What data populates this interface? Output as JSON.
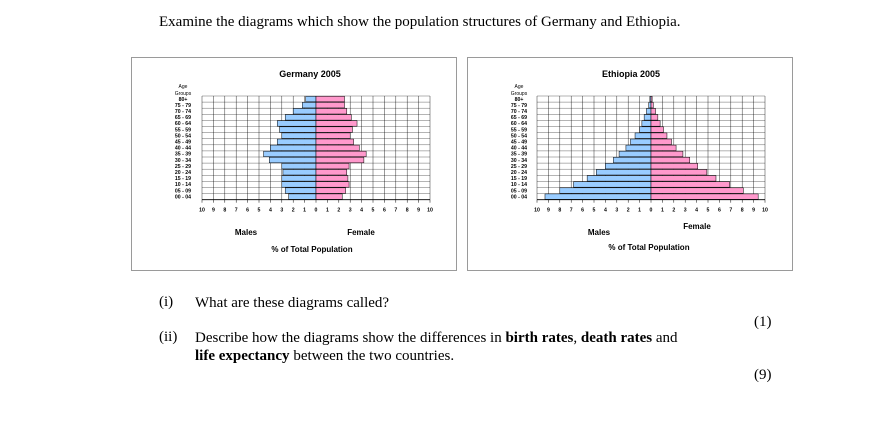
{
  "intro": "Examine the diagrams which show the population structures of Germany and Ethiopia.",
  "age_axis": {
    "title_top": "Age",
    "title_bottom": "Groups"
  },
  "age_groups": [
    "80+",
    "75 - 79",
    "70 - 74",
    "65 - 69",
    "60 - 64",
    "55 - 59",
    "50 - 54",
    "45 - 49",
    "40 - 44",
    "35 - 39",
    "30 - 34",
    "25 - 29",
    "20 - 24",
    "15 - 19",
    "10 - 14",
    "05 - 09",
    "00 - 04"
  ],
  "x_ticks": [
    "10",
    "9",
    "8",
    "7",
    "6",
    "5",
    "4",
    "3",
    "2",
    "1",
    "0",
    "1",
    "2",
    "3",
    "4",
    "5",
    "6",
    "7",
    "8",
    "9",
    "10"
  ],
  "colors": {
    "male": "#99ccff",
    "female": "#ff99cc",
    "edge": "#000000",
    "grid": "#000000"
  },
  "chart_data": [
    {
      "type": "bar",
      "orientation": "horizontal-butterfly",
      "title": "Germany 2005",
      "xlabel": "% of Total Population",
      "left_label": "Males",
      "right_label": "Female",
      "xlim": [
        -10,
        10
      ],
      "categories": [
        "80+",
        "75 - 79",
        "70 - 74",
        "65 - 69",
        "60 - 64",
        "55 - 59",
        "50 - 54",
        "45 - 49",
        "40 - 44",
        "35 - 39",
        "30 - 34",
        "25 - 29",
        "20 - 24",
        "15 - 19",
        "10 - 14",
        "05 - 09",
        "00 - 04"
      ],
      "series": [
        {
          "name": "Males",
          "values": [
            0.9,
            1.2,
            2.0,
            2.7,
            3.4,
            3.2,
            3.0,
            3.4,
            4.0,
            4.6,
            4.1,
            3.0,
            2.9,
            3.0,
            3.0,
            2.7,
            2.4
          ]
        },
        {
          "name": "Female",
          "values": [
            2.5,
            2.5,
            2.7,
            3.1,
            3.6,
            3.2,
            3.0,
            3.3,
            3.8,
            4.4,
            4.2,
            2.9,
            2.7,
            2.8,
            2.9,
            2.6,
            2.3
          ]
        }
      ]
    },
    {
      "type": "bar",
      "orientation": "horizontal-butterfly",
      "title": "Ethiopia 2005",
      "xlabel": "% of Total Population",
      "left_label": "Males",
      "right_label": "Female",
      "xlim": [
        -10,
        10
      ],
      "categories": [
        "80+",
        "75 - 79",
        "70 - 74",
        "65 - 69",
        "60 - 64",
        "55 - 59",
        "50 - 54",
        "45 - 49",
        "40 - 44",
        "35 - 39",
        "30 - 34",
        "25 - 29",
        "20 - 24",
        "15 - 19",
        "10 - 14",
        "05 - 09",
        "00 - 04"
      ],
      "series": [
        {
          "name": "Males",
          "values": [
            0.1,
            0.2,
            0.4,
            0.6,
            0.8,
            1.0,
            1.4,
            1.8,
            2.2,
            2.8,
            3.3,
            4.0,
            4.8,
            5.6,
            6.8,
            8.0,
            9.3
          ]
        },
        {
          "name": "Female",
          "values": [
            0.1,
            0.2,
            0.4,
            0.6,
            0.8,
            1.1,
            1.4,
            1.8,
            2.2,
            2.8,
            3.4,
            4.1,
            4.9,
            5.7,
            6.9,
            8.1,
            9.4
          ]
        }
      ]
    }
  ],
  "questions": [
    {
      "number": "(i)",
      "text_parts": [
        "What are these diagrams called?"
      ],
      "marks": "(1)"
    },
    {
      "number": "(ii)",
      "text_parts": [
        "Describe how the diagrams show the differences in ",
        "birth rates",
        ", ",
        "death rates",
        " and ",
        "life expectancy",
        " between the two countries."
      ],
      "marks": "(9)"
    }
  ]
}
